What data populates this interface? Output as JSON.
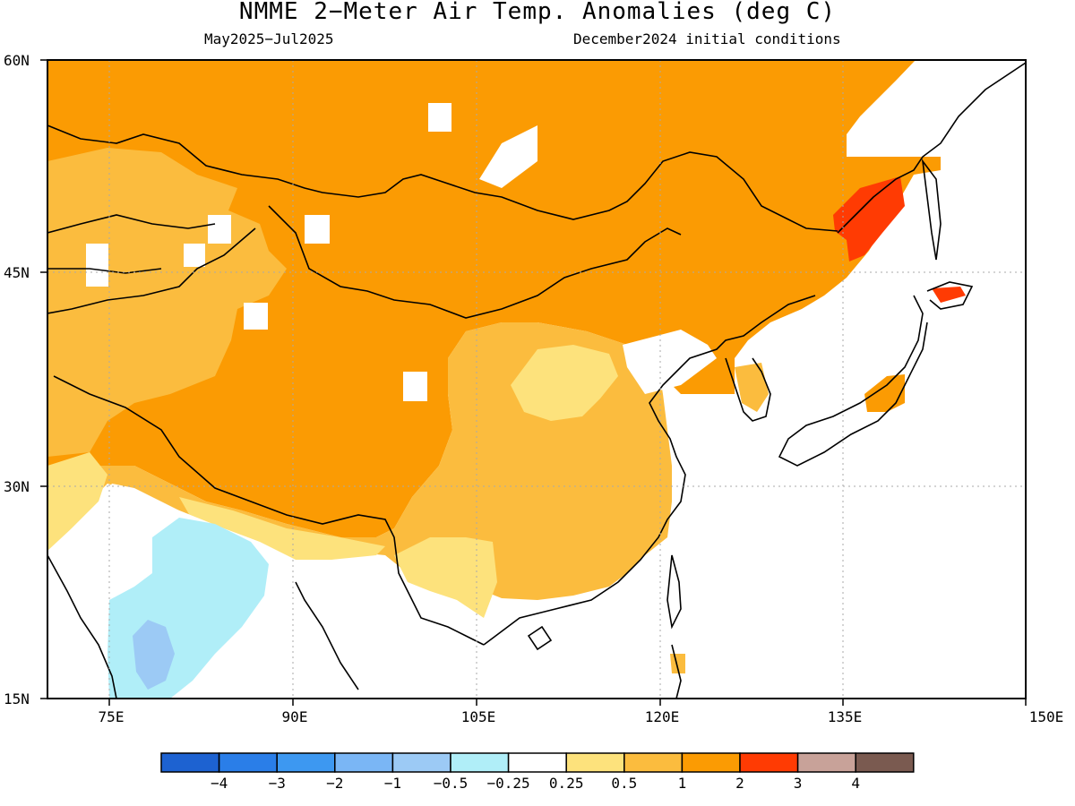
{
  "title": "NMME 2−Meter Air Temp. Anomalies (deg C)",
  "period": "May2025−Jul2025",
  "initial_conditions": "December2024 initial conditions",
  "map": {
    "lon_range": [
      70,
      150
    ],
    "lat_range": [
      15,
      60
    ],
    "lat_labels": [
      "60N",
      "45N",
      "30N",
      "15N"
    ],
    "lon_labels": [
      "75E",
      "90E",
      "105E",
      "120E",
      "135E",
      "150E"
    ],
    "gridlines": "dotted",
    "fill_regions": [
      {
        "level": "1 to 2",
        "color": "#fb9b03",
        "region": "northern and central Asia, Tibet, Mongolia, northeast China"
      },
      {
        "level": "0.5 to 1",
        "color": "#fbbc3e",
        "region": "western Central Asia, southern and eastern China, Himalayan fringe"
      },
      {
        "level": "0.25 to 0.5",
        "color": "#fde27c",
        "region": "central China patch, southern China coast, northern India fringe"
      },
      {
        "level": "2 to 3",
        "color": "#ff3b03",
        "region": "Russian Far East near Sea of Japan, Hokkaido"
      },
      {
        "level": "-0.5 to -0.25",
        "color": "#b0eef8",
        "region": "central India"
      },
      {
        "level": "-1 to -0.5",
        "color": "#9ccaf5",
        "region": "western India core"
      }
    ]
  },
  "colorbar": {
    "colors": [
      "#1d62d1",
      "#2a7ee8",
      "#3d98f1",
      "#7ab6f5",
      "#9ccaf5",
      "#b0eef8",
      "#ffffff",
      "#fde27c",
      "#fbbc3e",
      "#fb9b03",
      "#ff3b03",
      "#c8a299",
      "#7a5a50"
    ],
    "labels": [
      "−4",
      "−3",
      "−2",
      "−1",
      "−0.5",
      "−0.25",
      "0.25",
      "0.5",
      "1",
      "2",
      "3",
      "4"
    ]
  }
}
